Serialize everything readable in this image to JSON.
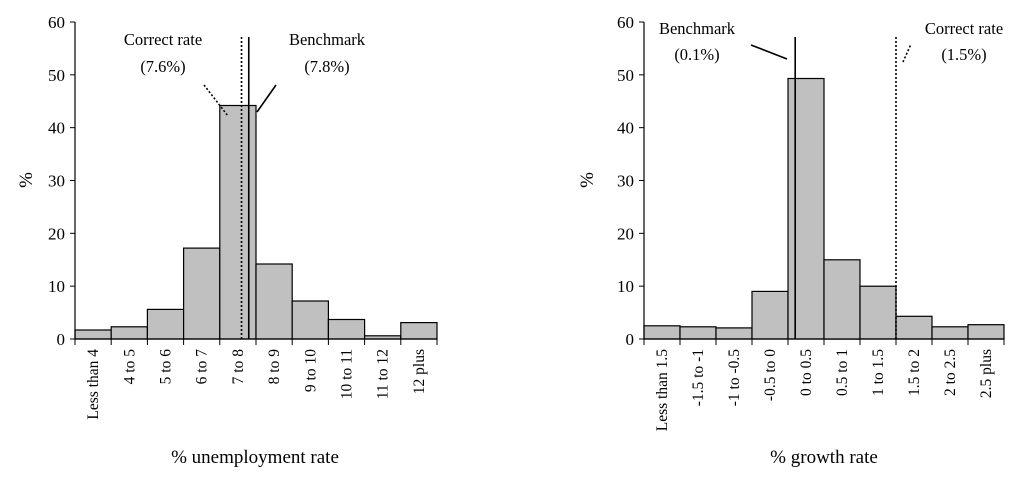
{
  "chart_data": [
    {
      "type": "bar",
      "title": "",
      "xlabel": "% unemployment rate",
      "ylabel": "%",
      "ylim": [
        0,
        60
      ],
      "yticks": [
        0,
        10,
        20,
        30,
        40,
        50,
        60
      ],
      "grid": false,
      "categories": [
        "Less than 4",
        "4 to 5",
        "5 to 6",
        "6 to 7",
        "7 to 8",
        "8 to 9",
        "9 to 10",
        "10 to 11",
        "11 to 12",
        "12 plus"
      ],
      "values": [
        1.7,
        2.3,
        5.6,
        17.2,
        44.2,
        14.2,
        7.2,
        3.7,
        0.6,
        3.1
      ],
      "reference_lines": [
        {
          "label": "Correct rate",
          "value_label": "(7.6%)",
          "x": 7.6,
          "style": "dotted"
        },
        {
          "label": "Benchmark",
          "value_label": "(7.8%)",
          "x": 7.8,
          "style": "solid"
        }
      ]
    },
    {
      "type": "bar",
      "title": "",
      "xlabel": "% growth rate",
      "ylabel": "%",
      "ylim": [
        0,
        60
      ],
      "yticks": [
        0,
        10,
        20,
        30,
        40,
        50,
        60
      ],
      "grid": false,
      "categories": [
        "Less than 1.5",
        "-1.5 to -1",
        "-1 to -0.5",
        "-0.5 to 0",
        "0 to 0.5",
        "0.5 to 1",
        "1 to 1.5",
        "1.5 to 2",
        "2 to 2.5",
        "2.5 plus"
      ],
      "values": [
        2.5,
        2.3,
        2.1,
        9.0,
        49.3,
        15.0,
        10.0,
        4.3,
        2.3,
        2.7
      ],
      "reference_lines": [
        {
          "label": "Benchmark",
          "value_label": "(0.1%)",
          "x": 0.1,
          "style": "solid"
        },
        {
          "label": "Correct rate",
          "value_label": "(1.5%)",
          "x": 1.5,
          "style": "dotted"
        }
      ]
    }
  ],
  "colors": {
    "bar_fill": "#c0c0c0",
    "bar_stroke": "#000000",
    "axis": "#000000"
  }
}
